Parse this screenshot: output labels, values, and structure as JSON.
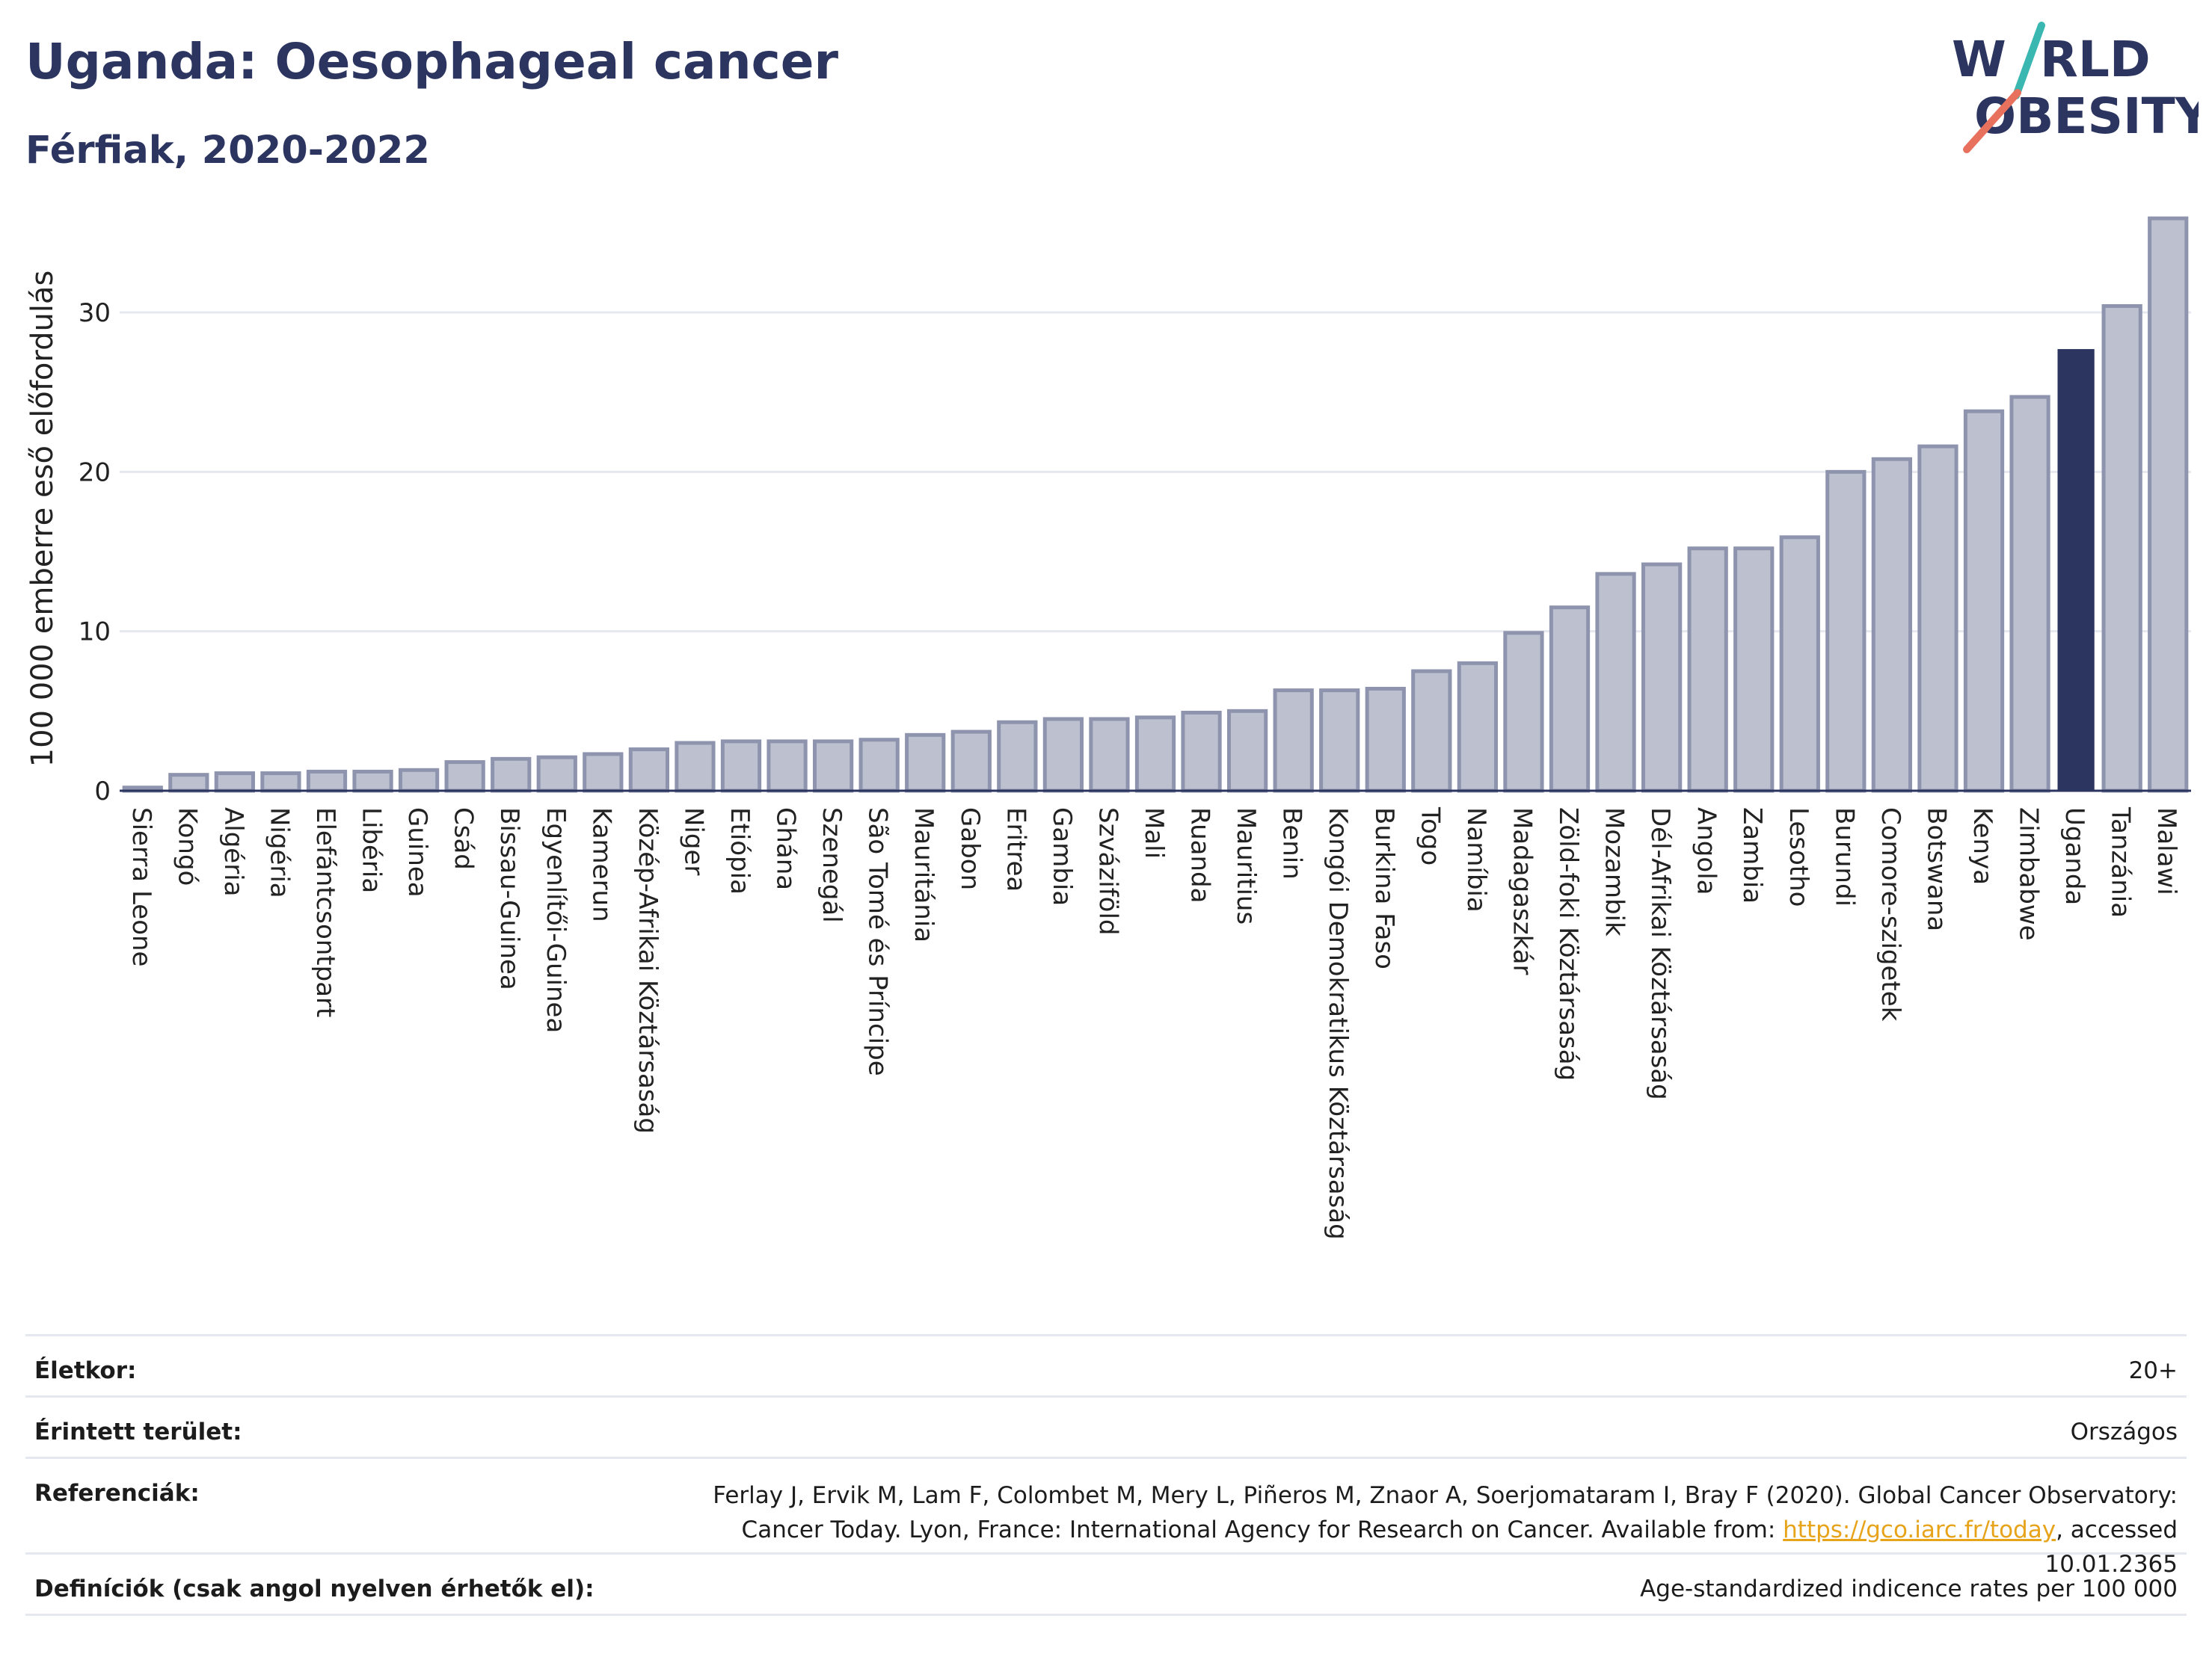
{
  "header": {
    "title": "Uganda: Oesophageal cancer",
    "subtitle": "Férfiak, 2020-2022"
  },
  "logo": {
    "line1": "WORLD",
    "line2": "OBESITY"
  },
  "colors": {
    "bar_fill": "#bcc0cf",
    "bar_stroke": "#8e94ad",
    "highlight": "#2b3560",
    "title": "#2b3560",
    "grid": "#e6e8ef",
    "logo_teal": "#3ab7b0",
    "logo_coral": "#e8715e",
    "link": "#e7a31a"
  },
  "chart_data": {
    "type": "bar",
    "ylabel": "100 000 emberre eső előfordulás",
    "yticks": [
      0,
      10,
      20,
      30
    ],
    "ylim": [
      0,
      36
    ],
    "grid": true,
    "highlight": "Uganda",
    "categories": [
      "Sierra Leone",
      "Kongó",
      "Algéria",
      "Nigéria",
      "Elefántcsontpart",
      "Libéria",
      "Guinea",
      "Csád",
      "Bissau-Guinea",
      "Egyenlítői-Guinea",
      "Kamerun",
      "Közép-Afrikai Köztársaság",
      "Niger",
      "Etiópia",
      "Ghána",
      "Szenegál",
      "São Tomé és Príncipe",
      "Mauritánia",
      "Gabon",
      "Eritrea",
      "Gambia",
      "Szváziföld",
      "Mali",
      "Ruanda",
      "Mauritius",
      "Benin",
      "Kongói Demokratikus Köztársaság",
      "Burkina Faso",
      "Togo",
      "Namíbia",
      "Madagaszkár",
      "Zöld-foki Köztársaság",
      "Mozambik",
      "Dél-Afrikai Köztársaság",
      "Angola",
      "Zambia",
      "Lesotho",
      "Burundi",
      "Comore-szigetek",
      "Botswana",
      "Kenya",
      "Zimbabwe",
      "Uganda",
      "Tanzánia",
      "Malawi"
    ],
    "values": [
      0.2,
      1.0,
      1.1,
      1.1,
      1.2,
      1.2,
      1.3,
      1.8,
      2.0,
      2.1,
      2.3,
      2.6,
      3.0,
      3.1,
      3.1,
      3.1,
      3.2,
      3.5,
      3.7,
      4.3,
      4.5,
      4.5,
      4.6,
      4.9,
      5.0,
      6.3,
      6.3,
      6.4,
      7.5,
      8.0,
      9.9,
      11.5,
      13.6,
      14.2,
      15.2,
      15.2,
      15.9,
      20.0,
      20.8,
      21.6,
      23.8,
      24.7,
      27.7,
      30.4,
      35.9
    ]
  },
  "meta": {
    "age_label": "Életkor:",
    "age_value": "20+",
    "area_label": "Érintett terület:",
    "area_value": "Országos",
    "ref_label": "Referenciák:",
    "ref_text_1": "Ferlay J, Ervik M, Lam F, Colombet M, Mery L, Piñeros M, Znaor A, Soerjomataram I, Bray F (2020). Global Cancer Observatory: Cancer Today. Lyon, France: International Agency for Research on Cancer. Available from: ",
    "ref_link": "https://gco.iarc.fr/today",
    "ref_text_2": ", accessed 10.01.2365",
    "def_label": "Definíciók (csak angol nyelven érhetők el):",
    "def_value": "Age-standardized indicence rates per 100 000"
  }
}
